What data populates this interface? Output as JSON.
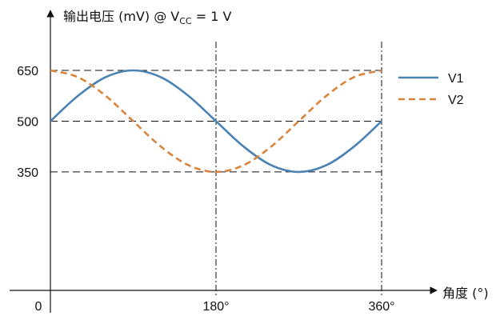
{
  "chart_data": {
    "type": "line",
    "title": "",
    "ylabel_main": "输出电压 (mV) @ V",
    "ylabel_sub": "CC",
    "ylabel_tail": " = 1 V",
    "xlabel": "角度 (°)",
    "origin_label": "0",
    "x_ticks": [
      {
        "value": 180,
        "label": "180°"
      },
      {
        "value": 360,
        "label": "360°"
      }
    ],
    "y_ticks": [
      {
        "value": 350,
        "label": "350"
      },
      {
        "value": 500,
        "label": "500"
      },
      {
        "value": 650,
        "label": "650"
      }
    ],
    "xlim": [
      0,
      360
    ],
    "ylim": [
      0,
      650
    ],
    "series": [
      {
        "name": "V1",
        "color": "#4a82b4",
        "style": "solid",
        "x": [
          0,
          30,
          60,
          90,
          120,
          150,
          180,
          210,
          240,
          270,
          300,
          330,
          360
        ],
        "y": [
          500,
          575,
          630,
          650,
          630,
          575,
          500,
          425,
          370,
          350,
          370,
          425,
          500
        ]
      },
      {
        "name": "V2",
        "color": "#d9843b",
        "style": "dashed",
        "x": [
          0,
          30,
          60,
          90,
          120,
          150,
          180,
          210,
          240,
          270,
          300,
          330,
          360
        ],
        "y": [
          650,
          630,
          575,
          500,
          425,
          370,
          350,
          370,
          425,
          500,
          575,
          630,
          650
        ]
      }
    ],
    "grid": "dashed reference lines at y=350, 500, 650 and x=180, 360",
    "legend": "right"
  }
}
